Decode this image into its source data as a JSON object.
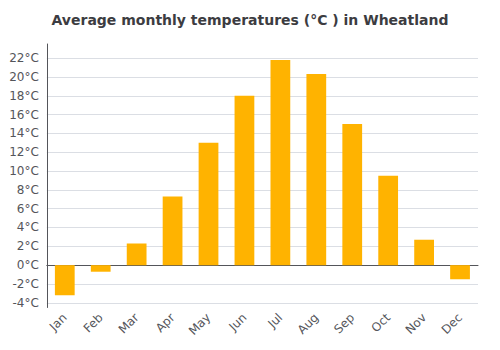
{
  "chart_data": {
    "type": "bar",
    "title": "Average monthly temperatures (°C ) in Wheatland",
    "categories": [
      "Jan",
      "Feb",
      "Mar",
      "Apr",
      "May",
      "Jun",
      "Jul",
      "Aug",
      "Sep",
      "Oct",
      "Nov",
      "Dec"
    ],
    "values": [
      -3.2,
      -0.7,
      2.3,
      7.3,
      13.0,
      18.0,
      21.8,
      20.3,
      15.0,
      9.5,
      2.7,
      -1.5
    ],
    "color": "#FFB300",
    "ylim": [
      -4.5,
      23.5
    ],
    "yticks": [
      {
        "value": -4,
        "label": "-4°C"
      },
      {
        "value": -2,
        "label": "-2°C"
      },
      {
        "value": 0,
        "label": "0°C"
      },
      {
        "value": 2,
        "label": "2°C"
      },
      {
        "value": 4,
        "label": "4°C"
      },
      {
        "value": 6,
        "label": "6°C"
      },
      {
        "value": 8,
        "label": "8°C"
      },
      {
        "value": 10,
        "label": "10°C"
      },
      {
        "value": 12,
        "label": "12°C"
      },
      {
        "value": 14,
        "label": "14°C"
      },
      {
        "value": 16,
        "label": "16°C"
      },
      {
        "value": 18,
        "label": "18°C"
      },
      {
        "value": 20,
        "label": "20°C"
      },
      {
        "value": 22,
        "label": "22°C"
      }
    ],
    "grid": true
  }
}
